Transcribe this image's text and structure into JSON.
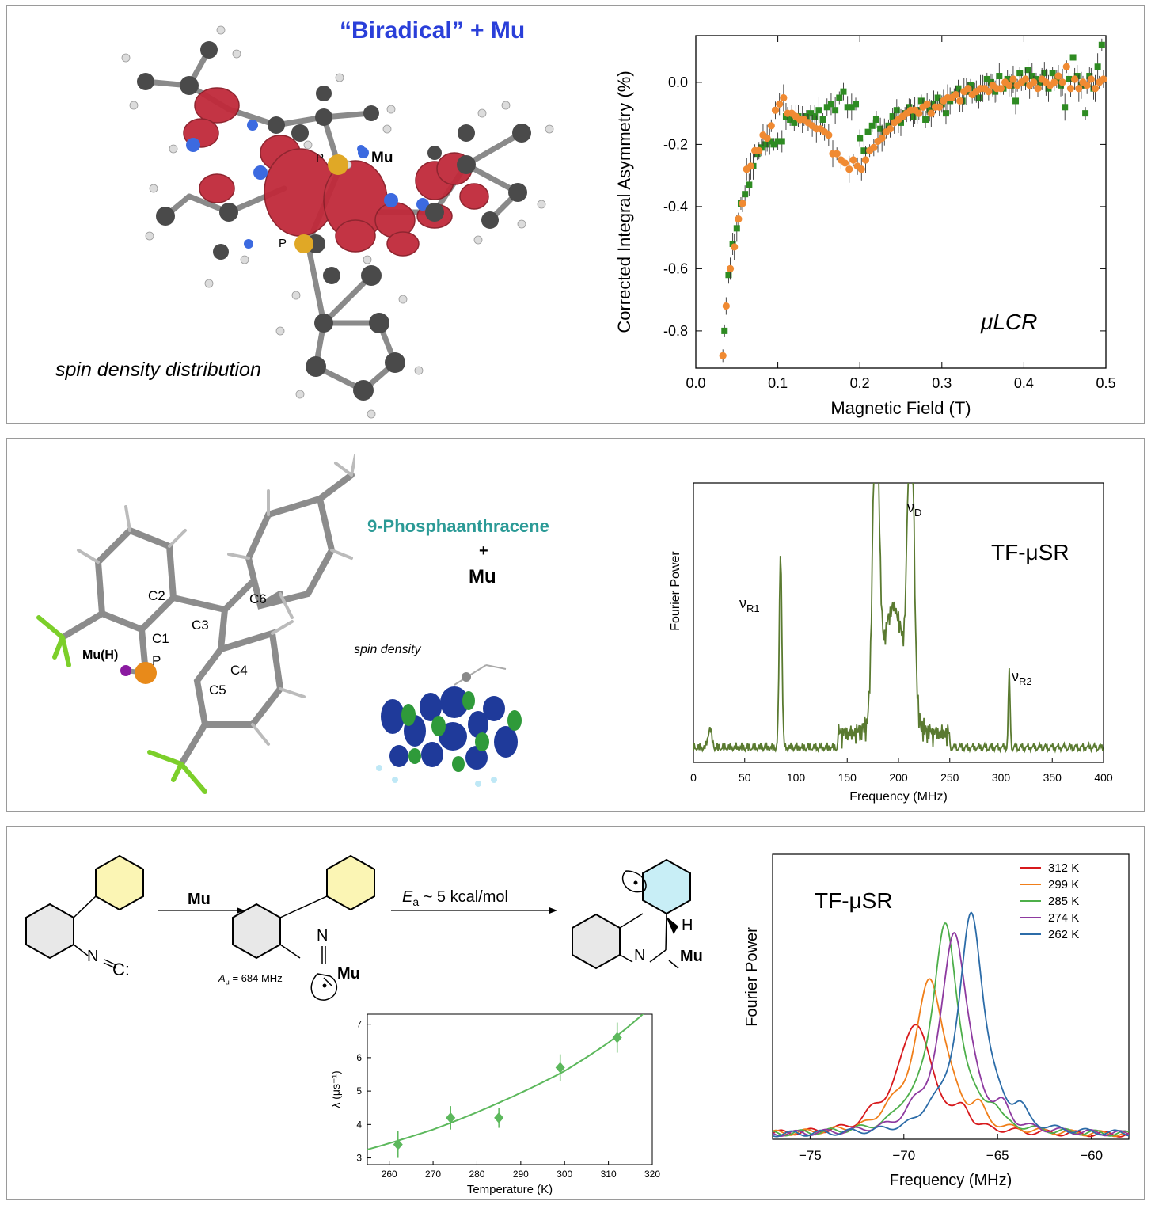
{
  "panel1": {
    "heading": "“Biradical” + Mu",
    "atom_label_p1": "P",
    "atom_label_p2": "P",
    "atom_label_mu": "Mu",
    "caption": "spin density distribution",
    "colors": {
      "heading": "#2a3fd9",
      "spin_lobe": "#c02a3a",
      "carbon": "#4a4a4a",
      "phosphorus": "#e0a826"
    }
  },
  "panel2": {
    "heading_line1": "9-Phosphaanthracene",
    "heading_plus": "+",
    "heading_line2": "Mu",
    "spin_density_label": "spin density",
    "atom_labels": [
      "C2",
      "C3",
      "C6",
      "C1",
      "Mu(H)",
      "C4",
      "P",
      "C5"
    ],
    "colors": {
      "heading": "#2b9a96",
      "spin_lobe_blue": "#1f3a9a",
      "spin_lobe_green": "#2f9a3a",
      "phosphorus": "#e88a1a",
      "fluorine": "#7ccf2a",
      "mu": "#8a1aa0"
    }
  },
  "panel3": {
    "reagent": "Mu",
    "activation": "E",
    "activation_sub": "a",
    "activation_rest": " ~ 5 kcal/mol",
    "hyperfine_A": "A",
    "hyperfine_sub": "μ",
    "hyperfine_rest": " = 684 MHz",
    "label_nc": "N",
    "label_c": "C:",
    "label_n_imine": "N",
    "label_mu_radical": "Mu",
    "label_n_product": "N",
    "label_mu_product": "Mu",
    "label_h": "H",
    "colors": {
      "phenyl_yellow": "#fbf5b4",
      "phenyl_blue": "#c8eef6",
      "ring_gray": "#e8e8e8"
    }
  },
  "chart_data": [
    {
      "type": "scatter",
      "title": "",
      "annotation": "μLCR",
      "xlabel": "Magnetic Field (T)",
      "ylabel": "Corrected Integral Asymmetry (%)",
      "xlim": [
        0.0,
        0.5
      ],
      "ylim": [
        -0.92,
        0.15
      ],
      "xticks": [
        "0.0",
        "0.1",
        "0.2",
        "0.3",
        "0.4",
        "0.5"
      ],
      "yticks": [
        "0.0",
        "-0.2",
        "-0.4",
        "-0.6",
        "-0.8"
      ],
      "series": [
        {
          "marker": "square",
          "color": "#2e8b22",
          "points": [
            [
              0.035,
              -0.8
            ],
            [
              0.04,
              -0.62
            ],
            [
              0.045,
              -0.52
            ],
            [
              0.05,
              -0.47
            ],
            [
              0.055,
              -0.39
            ],
            [
              0.06,
              -0.36
            ],
            [
              0.065,
              -0.33
            ],
            [
              0.07,
              -0.27
            ],
            [
              0.075,
              -0.23
            ],
            [
              0.08,
              -0.21
            ],
            [
              0.085,
              -0.2
            ],
            [
              0.09,
              -0.19
            ],
            [
              0.095,
              -0.2
            ],
            [
              0.1,
              -0.19
            ],
            [
              0.105,
              -0.19
            ],
            [
              0.11,
              -0.11
            ],
            [
              0.115,
              -0.12
            ],
            [
              0.12,
              -0.13
            ],
            [
              0.125,
              -0.11
            ],
            [
              0.13,
              -0.12
            ],
            [
              0.135,
              -0.11
            ],
            [
              0.14,
              -0.1
            ],
            [
              0.145,
              -0.11
            ],
            [
              0.15,
              -0.09
            ],
            [
              0.155,
              -0.12
            ],
            [
              0.16,
              -0.08
            ],
            [
              0.165,
              -0.07
            ],
            [
              0.17,
              -0.09
            ],
            [
              0.175,
              -0.05
            ],
            [
              0.18,
              -0.03
            ],
            [
              0.185,
              -0.08
            ],
            [
              0.19,
              -0.08
            ],
            [
              0.195,
              -0.07
            ],
            [
              0.2,
              -0.18
            ],
            [
              0.205,
              -0.22
            ],
            [
              0.21,
              -0.16
            ],
            [
              0.215,
              -0.14
            ],
            [
              0.22,
              -0.12
            ],
            [
              0.225,
              -0.15
            ],
            [
              0.23,
              -0.16
            ],
            [
              0.235,
              -0.14
            ],
            [
              0.24,
              -0.11
            ],
            [
              0.245,
              -0.09
            ],
            [
              0.25,
              -0.13
            ],
            [
              0.255,
              -0.1
            ],
            [
              0.26,
              -0.08
            ],
            [
              0.265,
              -0.11
            ],
            [
              0.27,
              -0.09
            ],
            [
              0.275,
              -0.06
            ],
            [
              0.28,
              -0.12
            ],
            [
              0.285,
              -0.09
            ],
            [
              0.29,
              -0.07
            ],
            [
              0.295,
              -0.05
            ],
            [
              0.3,
              -0.07
            ],
            [
              0.305,
              -0.1
            ],
            [
              0.31,
              -0.06
            ],
            [
              0.315,
              -0.04
            ],
            [
              0.32,
              -0.02
            ],
            [
              0.325,
              -0.06
            ],
            [
              0.33,
              -0.03
            ],
            [
              0.335,
              -0.01
            ],
            [
              0.34,
              -0.03
            ],
            [
              0.345,
              -0.05
            ],
            [
              0.35,
              -0.02
            ],
            [
              0.355,
              0.01
            ],
            [
              0.36,
              0.0
            ],
            [
              0.365,
              -0.03
            ],
            [
              0.37,
              0.02
            ],
            [
              0.375,
              -0.02
            ],
            [
              0.38,
              0.01
            ],
            [
              0.385,
              -0.01
            ],
            [
              0.39,
              -0.06
            ],
            [
              0.395,
              0.03
            ],
            [
              0.4,
              0.0
            ],
            [
              0.405,
              0.04
            ],
            [
              0.41,
              0.02
            ],
            [
              0.415,
              0.01
            ],
            [
              0.42,
              0.0
            ],
            [
              0.425,
              0.03
            ],
            [
              0.43,
              -0.02
            ],
            [
              0.435,
              0.03
            ],
            [
              0.44,
              0.01
            ],
            [
              0.445,
              -0.01
            ],
            [
              0.45,
              -0.08
            ],
            [
              0.455,
              0.01
            ],
            [
              0.46,
              0.08
            ],
            [
              0.465,
              0.02
            ],
            [
              0.47,
              -0.01
            ],
            [
              0.475,
              -0.1
            ],
            [
              0.48,
              0.02
            ],
            [
              0.485,
              -0.02
            ],
            [
              0.49,
              0.05
            ],
            [
              0.495,
              0.12
            ]
          ]
        },
        {
          "marker": "circle",
          "color": "#f08a32",
          "points": [
            [
              0.033,
              -0.88
            ],
            [
              0.037,
              -0.72
            ],
            [
              0.042,
              -0.6
            ],
            [
              0.047,
              -0.53
            ],
            [
              0.052,
              -0.44
            ],
            [
              0.057,
              -0.39
            ],
            [
              0.062,
              -0.28
            ],
            [
              0.067,
              -0.27
            ],
            [
              0.072,
              -0.22
            ],
            [
              0.077,
              -0.22
            ],
            [
              0.082,
              -0.17
            ],
            [
              0.087,
              -0.18
            ],
            [
              0.092,
              -0.14
            ],
            [
              0.097,
              -0.09
            ],
            [
              0.102,
              -0.07
            ],
            [
              0.107,
              -0.05
            ],
            [
              0.112,
              -0.1
            ],
            [
              0.117,
              -0.1
            ],
            [
              0.122,
              -0.11
            ],
            [
              0.127,
              -0.12
            ],
            [
              0.132,
              -0.12
            ],
            [
              0.137,
              -0.13
            ],
            [
              0.142,
              -0.14
            ],
            [
              0.147,
              -0.15
            ],
            [
              0.152,
              -0.15
            ],
            [
              0.157,
              -0.16
            ],
            [
              0.162,
              -0.17
            ],
            [
              0.167,
              -0.23
            ],
            [
              0.172,
              -0.23
            ],
            [
              0.177,
              -0.25
            ],
            [
              0.182,
              -0.26
            ],
            [
              0.187,
              -0.28
            ],
            [
              0.192,
              -0.25
            ],
            [
              0.197,
              -0.27
            ],
            [
              0.202,
              -0.28
            ],
            [
              0.207,
              -0.25
            ],
            [
              0.212,
              -0.22
            ],
            [
              0.217,
              -0.21
            ],
            [
              0.222,
              -0.19
            ],
            [
              0.227,
              -0.18
            ],
            [
              0.232,
              -0.16
            ],
            [
              0.237,
              -0.15
            ],
            [
              0.242,
              -0.13
            ],
            [
              0.247,
              -0.12
            ],
            [
              0.252,
              -0.11
            ],
            [
              0.257,
              -0.1
            ],
            [
              0.262,
              -0.09
            ],
            [
              0.267,
              -0.09
            ],
            [
              0.272,
              -0.1
            ],
            [
              0.277,
              -0.08
            ],
            [
              0.282,
              -0.07
            ],
            [
              0.287,
              -0.1
            ],
            [
              0.292,
              -0.08
            ],
            [
              0.297,
              -0.08
            ],
            [
              0.302,
              -0.06
            ],
            [
              0.307,
              -0.05
            ],
            [
              0.312,
              -0.05
            ],
            [
              0.317,
              -0.04
            ],
            [
              0.322,
              -0.06
            ],
            [
              0.327,
              -0.03
            ],
            [
              0.332,
              -0.02
            ],
            [
              0.337,
              -0.04
            ],
            [
              0.342,
              -0.03
            ],
            [
              0.347,
              -0.02
            ],
            [
              0.352,
              -0.02
            ],
            [
              0.357,
              -0.03
            ],
            [
              0.362,
              -0.01
            ],
            [
              0.367,
              -0.02
            ],
            [
              0.372,
              -0.02
            ],
            [
              0.377,
              0.0
            ],
            [
              0.382,
              -0.01
            ],
            [
              0.387,
              0.01
            ],
            [
              0.392,
              -0.01
            ],
            [
              0.397,
              0.0
            ],
            [
              0.402,
              0.01
            ],
            [
              0.407,
              -0.01
            ],
            [
              0.412,
              0.0
            ],
            [
              0.417,
              -0.02
            ],
            [
              0.422,
              0.01
            ],
            [
              0.427,
              0.0
            ],
            [
              0.432,
              -0.01
            ],
            [
              0.437,
              0.0
            ],
            [
              0.442,
              0.02
            ],
            [
              0.447,
              0.0
            ],
            [
              0.452,
              0.05
            ],
            [
              0.457,
              -0.02
            ],
            [
              0.462,
              0.01
            ],
            [
              0.467,
              -0.02
            ],
            [
              0.472,
              0.0
            ],
            [
              0.477,
              -0.01
            ],
            [
              0.482,
              0.01
            ],
            [
              0.487,
              -0.02
            ],
            [
              0.492,
              0.0
            ],
            [
              0.497,
              0.01
            ]
          ]
        }
      ]
    },
    {
      "type": "line",
      "title": "",
      "annotation": "TF-μSR",
      "xlabel": "Frequency (MHz)",
      "ylabel": "Fourier Power",
      "xlim": [
        0,
        400
      ],
      "ylim": [
        0,
        1.0
      ],
      "xticks": [
        "0",
        "50",
        "100",
        "150",
        "200",
        "250",
        "300",
        "350",
        "400"
      ],
      "peak_labels": [
        {
          "text": "ν",
          "sub": "R1",
          "x": 85
        },
        {
          "text": "ν",
          "sub": "D",
          "x": 213
        },
        {
          "text": "ν",
          "sub": "R2",
          "x": 308
        }
      ],
      "color": "#5a7a30",
      "peaks": [
        {
          "center": 85,
          "height": 0.7,
          "width": 1.8
        },
        {
          "center": 178,
          "height": 1.2,
          "width": 4.0
        },
        {
          "center": 212,
          "height": 1.2,
          "width": 4.0
        },
        {
          "center": 195,
          "height": 0.45,
          "width": 16.0
        },
        {
          "center": 308,
          "height": 0.27,
          "width": 1.2
        },
        {
          "center": 16,
          "height": 0.07,
          "width": 2.5
        }
      ]
    },
    {
      "type": "scatter",
      "title": "",
      "xlabel": "Temperature (K)",
      "ylabel": "λ (μs⁻¹)",
      "xlim": [
        255,
        320
      ],
      "ylim": [
        2.8,
        7.3
      ],
      "xticks": [
        "260",
        "270",
        "280",
        "290",
        "300",
        "310",
        "320"
      ],
      "yticks": [
        "3",
        "4",
        "5",
        "6",
        "7"
      ],
      "color": "#5cb85c",
      "x": [
        262,
        274,
        285,
        299,
        312
      ],
      "y": [
        3.4,
        4.2,
        4.2,
        5.7,
        6.6
      ],
      "yerr": [
        0.4,
        0.35,
        0.3,
        0.4,
        0.45
      ],
      "fit": {
        "type": "exponential",
        "points": [
          [
            255,
            3.25
          ],
          [
            270,
            3.85
          ],
          [
            285,
            4.65
          ],
          [
            300,
            5.6
          ],
          [
            310,
            6.45
          ],
          [
            320,
            7.55
          ]
        ]
      }
    },
    {
      "type": "line",
      "title": "",
      "annotation": "TF-μSR",
      "xlabel": "Frequency (MHz)",
      "ylabel": "Fourier Power",
      "xlim": [
        -77,
        -58
      ],
      "xticks": [
        "-75",
        "-70",
        "-65",
        "-60"
      ],
      "legend_position": "top-right",
      "series": [
        {
          "name": "312 K",
          "color": "#d7191c",
          "center": -69.4,
          "height": 0.42,
          "width": 1.25
        },
        {
          "name": "299 K",
          "color": "#f07f1a",
          "center": -68.6,
          "height": 0.58,
          "width": 1.15
        },
        {
          "name": "285 K",
          "color": "#4daf4a",
          "center": -67.8,
          "height": 0.78,
          "width": 1.0
        },
        {
          "name": "274 K",
          "color": "#8e3aa0",
          "center": -67.3,
          "height": 0.76,
          "width": 1.0
        },
        {
          "name": "262 K",
          "color": "#2c6ca8",
          "center": -66.4,
          "height": 0.82,
          "width": 0.95
        }
      ]
    }
  ]
}
